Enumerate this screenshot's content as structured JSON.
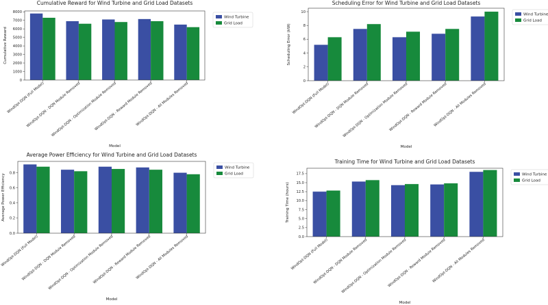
{
  "colors": {
    "wind": "#3a4fa3",
    "grid": "#178a3c"
  },
  "chart_data": [
    {
      "type": "bar",
      "title": "Cumulative Reward for Wind Turbine and Grid Load Datasets",
      "xlabel": "Model",
      "ylabel": "Cumulative Reward",
      "ylim": [
        0,
        8100
      ],
      "yticks": [
        "0",
        "1000",
        "2000",
        "3000",
        "4000",
        "5000",
        "6000",
        "7000",
        "8000"
      ],
      "ytick_values": [
        0,
        1000,
        2000,
        3000,
        4000,
        5000,
        6000,
        7000,
        8000
      ],
      "categories": [
        "WindOpt-DQN (Full Model)",
        "WindOpt-DQN - DQN Module Removed",
        "WindOpt-DQN - Optimization Module Removed",
        "WindOpt-DQN - Reward Module Removed",
        "WindOpt-DQN - All Modules Removed"
      ],
      "legend_position": "top-right",
      "series": [
        {
          "name": "Wind Turbine",
          "values": [
            7800,
            6900,
            7100,
            7150,
            6500
          ]
        },
        {
          "name": "Grid Load",
          "values": [
            7300,
            6600,
            6800,
            6900,
            6200
          ]
        }
      ]
    },
    {
      "type": "bar",
      "title": "Scheduling Error for Wind Turbine and Grid Load Datasets",
      "xlabel": "Model",
      "ylabel": "Scheduling Error (kW)",
      "ylim": [
        0,
        10.5
      ],
      "yticks": [
        "0",
        "2",
        "4",
        "6",
        "8",
        "10"
      ],
      "ytick_values": [
        0,
        2,
        4,
        6,
        8,
        10
      ],
      "categories": [
        "WindOpt-DQN (Full Model)",
        "WindOpt-DQN - DQN Module Removed",
        "WindOpt-DQN - Optimization Module Removed",
        "WindOpt-DQN - Reward Module Removed",
        "WindOpt-DQN - All Modules Removed"
      ],
      "legend_position": "top-right",
      "series": [
        {
          "name": "Wind Turbine",
          "values": [
            5.2,
            7.5,
            6.3,
            6.8,
            9.3
          ]
        },
        {
          "name": "Grid Load",
          "values": [
            6.3,
            8.2,
            7.1,
            7.5,
            10.0
          ]
        }
      ]
    },
    {
      "type": "bar",
      "title": "Average Power Efficiency for Wind Turbine and Grid Load Datasets",
      "xlabel": "Model",
      "ylabel": "Average Power Efficiency",
      "ylim": [
        0,
        0.95
      ],
      "yticks": [
        "0.0",
        "0.2",
        "0.4",
        "0.6",
        "0.8"
      ],
      "ytick_values": [
        0,
        0.2,
        0.4,
        0.6,
        0.8
      ],
      "categories": [
        "WindOpt-DQN (Full Model)",
        "WindOpt-DQN - DQN Module Removed",
        "WindOpt-DQN - Optimization Module Removed",
        "WindOpt-DQN - Reward Module Removed",
        "WindOpt-DQN - All Modules Removed"
      ],
      "legend_position": "top-right",
      "series": [
        {
          "name": "Wind Turbine",
          "values": [
            0.91,
            0.84,
            0.88,
            0.87,
            0.8
          ]
        },
        {
          "name": "Grid Load",
          "values": [
            0.88,
            0.82,
            0.85,
            0.84,
            0.78
          ]
        }
      ]
    },
    {
      "type": "bar",
      "title": "Training Time for Wind Turbine and Grid Load Datasets",
      "xlabel": "Model",
      "ylabel": "Training Time (hours)",
      "ylim": [
        0,
        19
      ],
      "yticks": [
        "0.0",
        "2.5",
        "5.0",
        "7.5",
        "10.0",
        "12.5",
        "15.0",
        "17.5"
      ],
      "ytick_values": [
        0,
        2.5,
        5,
        7.5,
        10,
        12.5,
        15,
        17.5
      ],
      "categories": [
        "WindOpt-DQN (Full Model)",
        "WindOpt-DQN - DQN Module Removed",
        "WindOpt-DQN - Optimization Module Removed",
        "WindOpt-DQN - Reward Module Removed",
        "WindOpt-DQN - All Modules Removed"
      ],
      "legend_position": "top-right",
      "series": [
        {
          "name": "Wind Turbine",
          "values": [
            12.5,
            15.3,
            14.3,
            14.5,
            18.0
          ]
        },
        {
          "name": "Grid Load",
          "values": [
            12.8,
            15.7,
            14.6,
            14.8,
            18.5
          ]
        }
      ]
    }
  ]
}
